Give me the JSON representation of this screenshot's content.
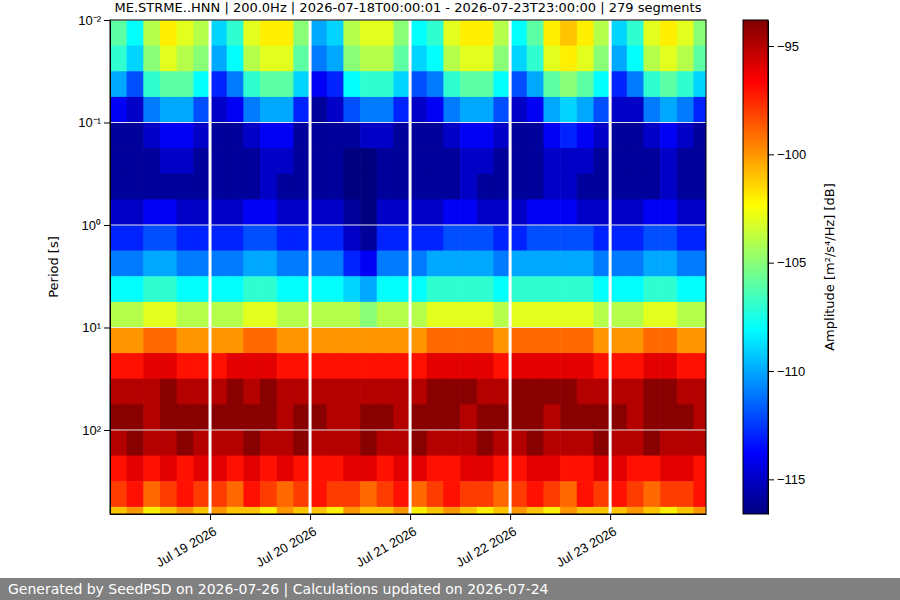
{
  "chart_data": {
    "type": "heatmap",
    "title": "ME.STRME..HNN | 200.0Hz | 2026-07-18T00:00:01 - 2026-07-23T23:00:00 | 279 segments",
    "y_label": "Period [s]",
    "footer": "Generated by SeedPSD on 2026-07-26 | Calculations updated on 2026-07-24",
    "log": "y",
    "grid": true,
    "xlim": [
      "2026-07-18T00:00",
      "2026-07-23T23:00"
    ],
    "xticks": [
      {
        "value": "2026-07-19T00:00",
        "label": "Jul 19 2026"
      },
      {
        "value": "2026-07-20T00:00",
        "label": "Jul 20 2026"
      },
      {
        "value": "2026-07-21T00:00",
        "label": "Jul 21 2026"
      },
      {
        "value": "2026-07-22T00:00",
        "label": "Jul 22 2026"
      },
      {
        "value": "2026-07-23T00:00",
        "label": "Jul 23 2026"
      }
    ],
    "ylim": [
      0.01,
      660
    ],
    "yticks": [
      {
        "value": 0.01,
        "label": "10⁻²"
      },
      {
        "value": 0.1,
        "label": "10⁻¹"
      },
      {
        "value": 1,
        "label": "10⁰"
      },
      {
        "value": 10,
        "label": "10¹"
      },
      {
        "value": 100,
        "label": "10²"
      }
    ],
    "colorbar": {
      "label": "Amplitude [m²/s⁴/Hz] [dB]",
      "lim": [
        -116.6,
        -93.8
      ],
      "ticks": [
        {
          "value": -95,
          "label": "−95"
        },
        {
          "value": -100,
          "label": "−100"
        },
        {
          "value": -105,
          "label": "−105"
        },
        {
          "value": -110,
          "label": "−110"
        },
        {
          "value": -115,
          "label": "−115"
        }
      ]
    },
    "x": [
      "2026-07-18T00:00",
      "2026-07-18T04:00",
      "2026-07-18T08:00",
      "2026-07-18T12:00",
      "2026-07-18T16:00",
      "2026-07-18T20:00",
      "2026-07-19T00:00",
      "2026-07-19T04:00",
      "2026-07-19T08:00",
      "2026-07-19T12:00",
      "2026-07-19T16:00",
      "2026-07-19T20:00",
      "2026-07-20T00:00",
      "2026-07-20T04:00",
      "2026-07-20T08:00",
      "2026-07-20T12:00",
      "2026-07-20T16:00",
      "2026-07-20T20:00",
      "2026-07-21T00:00",
      "2026-07-21T04:00",
      "2026-07-21T08:00",
      "2026-07-21T12:00",
      "2026-07-21T16:00",
      "2026-07-21T20:00",
      "2026-07-22T00:00",
      "2026-07-22T04:00",
      "2026-07-22T08:00",
      "2026-07-22T12:00",
      "2026-07-22T16:00",
      "2026-07-22T20:00",
      "2026-07-23T00:00",
      "2026-07-23T04:00",
      "2026-07-23T08:00",
      "2026-07-23T12:00",
      "2026-07-23T16:00",
      "2026-07-23T20:00"
    ],
    "y": [
      0.0133,
      0.0237,
      0.0422,
      0.075,
      0.133,
      0.237,
      0.422,
      0.75,
      1.33,
      2.37,
      4.22,
      7.5,
      13.3,
      23.7,
      42.2,
      75,
      133,
      237,
      422,
      750
    ],
    "values": [
      [
        -106,
        -108,
        -104,
        -102,
        -103,
        -104,
        -109,
        -107,
        -103,
        -102,
        -102,
        -105,
        -110,
        -109,
        -104,
        -103,
        -103,
        -105,
        -108,
        -107,
        -103,
        -102,
        -102,
        -104,
        -108,
        -106,
        -102,
        -101,
        -102,
        -104,
        -109,
        -107,
        -103,
        -102,
        -103,
        -105
      ],
      [
        -107,
        -109,
        -105,
        -103,
        -104,
        -105,
        -110,
        -108,
        -104,
        -103,
        -103,
        -106,
        -111,
        -110,
        -105,
        -104,
        -104,
        -106,
        -109,
        -108,
        -104,
        -103,
        -103,
        -105,
        -109,
        -107,
        -103,
        -102,
        -103,
        -105,
        -110,
        -108,
        -104,
        -103,
        -104,
        -106
      ],
      [
        -110,
        -112,
        -107,
        -106,
        -106,
        -108,
        -113,
        -111,
        -107,
        -106,
        -106,
        -109,
        -114,
        -113,
        -108,
        -107,
        -107,
        -109,
        -112,
        -111,
        -107,
        -106,
        -106,
        -108,
        -112,
        -110,
        -106,
        -105,
        -106,
        -108,
        -113,
        -111,
        -107,
        -106,
        -107,
        -109
      ],
      [
        -114,
        -115,
        -111,
        -110,
        -110,
        -112,
        -115,
        -114,
        -111,
        -110,
        -110,
        -113,
        -116,
        -115,
        -112,
        -111,
        -111,
        -113,
        -115,
        -114,
        -111,
        -110,
        -110,
        -112,
        -115,
        -114,
        -110,
        -109,
        -110,
        -112,
        -115,
        -115,
        -111,
        -110,
        -111,
        -113
      ],
      [
        -116,
        -116,
        -115,
        -114,
        -114,
        -115,
        -116,
        -116,
        -115,
        -114,
        -114,
        -116,
        -116,
        -116,
        -116,
        -115,
        -115,
        -116,
        -116,
        -116,
        -115,
        -114,
        -114,
        -115,
        -116,
        -116,
        -114,
        -113,
        -114,
        -115,
        -116,
        -116,
        -115,
        -114,
        -115,
        -116
      ],
      [
        -116,
        -116,
        -116,
        -115,
        -115,
        -116,
        -116,
        -116,
        -116,
        -115,
        -115,
        -116,
        -116,
        -116,
        -117,
        -117,
        -116,
        -116,
        -116,
        -116,
        -116,
        -115,
        -115,
        -116,
        -116,
        -116,
        -115,
        -115,
        -115,
        -116,
        -116,
        -116,
        -116,
        -115,
        -116,
        -116
      ],
      [
        -116,
        -116,
        -116,
        -116,
        -116,
        -116,
        -116,
        -116,
        -116,
        -115,
        -116,
        -116,
        -116,
        -116,
        -117,
        -117,
        -116,
        -116,
        -116,
        -116,
        -116,
        -115,
        -116,
        -116,
        -116,
        -116,
        -115,
        -115,
        -116,
        -116,
        -116,
        -116,
        -116,
        -115,
        -116,
        -116
      ],
      [
        -115,
        -115,
        -114,
        -114,
        -115,
        -115,
        -115,
        -115,
        -114,
        -114,
        -115,
        -115,
        -115,
        -115,
        -116,
        -117,
        -115,
        -115,
        -115,
        -115,
        -114,
        -114,
        -115,
        -115,
        -115,
        -114,
        -114,
        -114,
        -115,
        -115,
        -115,
        -115,
        -114,
        -114,
        -115,
        -115
      ],
      [
        -113,
        -113,
        -112,
        -112,
        -113,
        -113,
        -113,
        -113,
        -112,
        -112,
        -113,
        -113,
        -113,
        -113,
        -115,
        -116,
        -113,
        -113,
        -113,
        -113,
        -112,
        -112,
        -112,
        -113,
        -113,
        -112,
        -112,
        -112,
        -112,
        -113,
        -113,
        -113,
        -112,
        -112,
        -113,
        -113
      ],
      [
        -111,
        -111,
        -110,
        -110,
        -111,
        -111,
        -111,
        -111,
        -110,
        -110,
        -111,
        -111,
        -111,
        -111,
        -113,
        -114,
        -111,
        -111,
        -111,
        -110,
        -110,
        -110,
        -110,
        -111,
        -110,
        -110,
        -110,
        -110,
        -110,
        -111,
        -111,
        -111,
        -110,
        -110,
        -111,
        -111
      ],
      [
        -108,
        -108,
        -107,
        -107,
        -108,
        -108,
        -108,
        -108,
        -107,
        -107,
        -108,
        -108,
        -108,
        -108,
        -109,
        -110,
        -108,
        -108,
        -108,
        -107,
        -107,
        -107,
        -107,
        -108,
        -107,
        -107,
        -107,
        -107,
        -107,
        -108,
        -108,
        -108,
        -107,
        -107,
        -108,
        -108
      ],
      [
        -104,
        -104,
        -103,
        -103,
        -104,
        -104,
        -104,
        -104,
        -103,
        -103,
        -104,
        -104,
        -104,
        -104,
        -104,
        -105,
        -104,
        -104,
        -104,
        -103,
        -103,
        -103,
        -103,
        -104,
        -103,
        -103,
        -103,
        -103,
        -103,
        -104,
        -104,
        -104,
        -103,
        -103,
        -104,
        -104
      ],
      [
        -100,
        -100,
        -99,
        -99,
        -100,
        -100,
        -100,
        -100,
        -99,
        -99,
        -100,
        -100,
        -100,
        -100,
        -100,
        -100,
        -100,
        -100,
        -100,
        -99,
        -99,
        -99,
        -99,
        -100,
        -99,
        -99,
        -99,
        -99,
        -99,
        -100,
        -100,
        -100,
        -99,
        -99,
        -100,
        -100
      ],
      [
        -97,
        -97,
        -96,
        -96,
        -97,
        -97,
        -97,
        -96,
        -96,
        -96,
        -97,
        -97,
        -97,
        -97,
        -97,
        -97,
        -97,
        -97,
        -97,
        -96,
        -96,
        -96,
        -96,
        -97,
        -96,
        -96,
        -96,
        -96,
        -96,
        -97,
        -97,
        -97,
        -96,
        -96,
        -97,
        -97
      ],
      [
        -95,
        -95,
        -95,
        -94,
        -95,
        -95,
        -95,
        -94,
        -95,
        -94,
        -95,
        -95,
        -95,
        -95,
        -95,
        -95,
        -95,
        -95,
        -95,
        -94,
        -94,
        -94,
        -95,
        -95,
        -94,
        -94,
        -94,
        -94,
        -95,
        -95,
        -95,
        -95,
        -94,
        -94,
        -95,
        -95
      ],
      [
        -94,
        -94,
        -95,
        -94,
        -94,
        -94,
        -94,
        -94,
        -94,
        -94,
        -95,
        -94,
        -94,
        -95,
        -95,
        -94,
        -94,
        -95,
        -94,
        -94,
        -94,
        -95,
        -94,
        -94,
        -94,
        -94,
        -95,
        -94,
        -94,
        -94,
        -94,
        -95,
        -94,
        -94,
        -94,
        -95
      ],
      [
        -95,
        -94,
        -95,
        -95,
        -94,
        -95,
        -95,
        -95,
        -94,
        -95,
        -95,
        -94,
        -95,
        -95,
        -95,
        -94,
        -95,
        -95,
        -94,
        -95,
        -95,
        -95,
        -94,
        -95,
        -95,
        -94,
        -95,
        -95,
        -95,
        -94,
        -95,
        -95,
        -94,
        -95,
        -95,
        -95
      ],
      [
        -97,
        -96,
        -97,
        -96,
        -97,
        -96,
        -96,
        -97,
        -96,
        -97,
        -96,
        -97,
        -97,
        -97,
        -96,
        -96,
        -97,
        -96,
        -96,
        -97,
        -97,
        -96,
        -96,
        -97,
        -97,
        -96,
        -96,
        -97,
        -97,
        -96,
        -96,
        -97,
        -97,
        -96,
        -96,
        -97
      ],
      [
        -98,
        -97,
        -99,
        -98,
        -97,
        -98,
        -98,
        -99,
        -97,
        -98,
        -99,
        -98,
        -97,
        -98,
        -98,
        -99,
        -98,
        -97,
        -99,
        -98,
        -97,
        -98,
        -98,
        -99,
        -98,
        -97,
        -98,
        -99,
        -97,
        -98,
        -97,
        -98,
        -99,
        -98,
        -98,
        -97
      ],
      [
        -101,
        -100,
        -102,
        -101,
        -100,
        -101,
        -100,
        -101,
        -101,
        -102,
        -100,
        -101,
        -101,
        -102,
        -100,
        -101,
        -101,
        -100,
        -102,
        -101,
        -100,
        -101,
        -102,
        -101,
        -100,
        -101,
        -102,
        -100,
        -101,
        -101,
        -101,
        -100,
        -101,
        -102,
        -101,
        -100
      ]
    ]
  }
}
